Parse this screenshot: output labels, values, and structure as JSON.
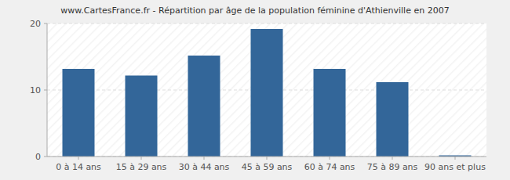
{
  "chart_data": {
    "type": "bar",
    "title": "www.CartesFrance.fr - Répartition par âge de la population féminine d'Athienville en 2007",
    "categories": [
      "0 à 14 ans",
      "15 à 29 ans",
      "30 à 44 ans",
      "45 à 59 ans",
      "60 à 74 ans",
      "75 à 89 ans",
      "90 ans et plus"
    ],
    "values": [
      13,
      12,
      15,
      19,
      13,
      11,
      0
    ],
    "color": "#336699",
    "ylim": [
      0,
      20
    ],
    "yticks": [
      0,
      10,
      20
    ],
    "grid": true
  }
}
